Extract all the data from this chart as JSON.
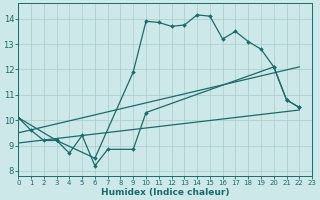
{
  "xlabel": "Humidex (Indice chaleur)",
  "xlim": [
    0,
    23
  ],
  "ylim": [
    7.8,
    14.6
  ],
  "yticks": [
    8,
    9,
    10,
    11,
    12,
    13,
    14
  ],
  "xticks": [
    0,
    1,
    2,
    3,
    4,
    5,
    6,
    7,
    8,
    9,
    10,
    11,
    12,
    13,
    14,
    15,
    16,
    17,
    18,
    19,
    20,
    21,
    22,
    23
  ],
  "bg_color": "#cde8e8",
  "grid_color": "#aacccc",
  "line_color": "#1a6b6b",
  "line1_x": [
    0,
    1,
    2,
    3,
    4,
    5,
    6,
    7,
    9,
    10,
    20,
    21,
    22
  ],
  "line1_y": [
    10.1,
    9.6,
    9.2,
    9.2,
    8.7,
    9.4,
    8.2,
    8.85,
    8.85,
    10.3,
    12.1,
    10.8,
    10.5
  ],
  "line2_x": [
    0,
    3,
    6,
    9,
    10,
    11,
    12,
    13,
    14,
    15,
    16,
    17,
    18,
    19,
    20,
    21,
    22
  ],
  "line2_y": [
    10.1,
    9.2,
    8.5,
    11.9,
    13.9,
    13.85,
    13.7,
    13.75,
    14.15,
    14.1,
    13.2,
    13.5,
    13.1,
    12.8,
    12.1,
    10.8,
    10.5
  ],
  "line3_x": [
    0,
    22
  ],
  "line3_y": [
    9.1,
    10.4
  ],
  "line4_x": [
    0,
    22
  ],
  "line4_y": [
    9.5,
    12.1
  ]
}
